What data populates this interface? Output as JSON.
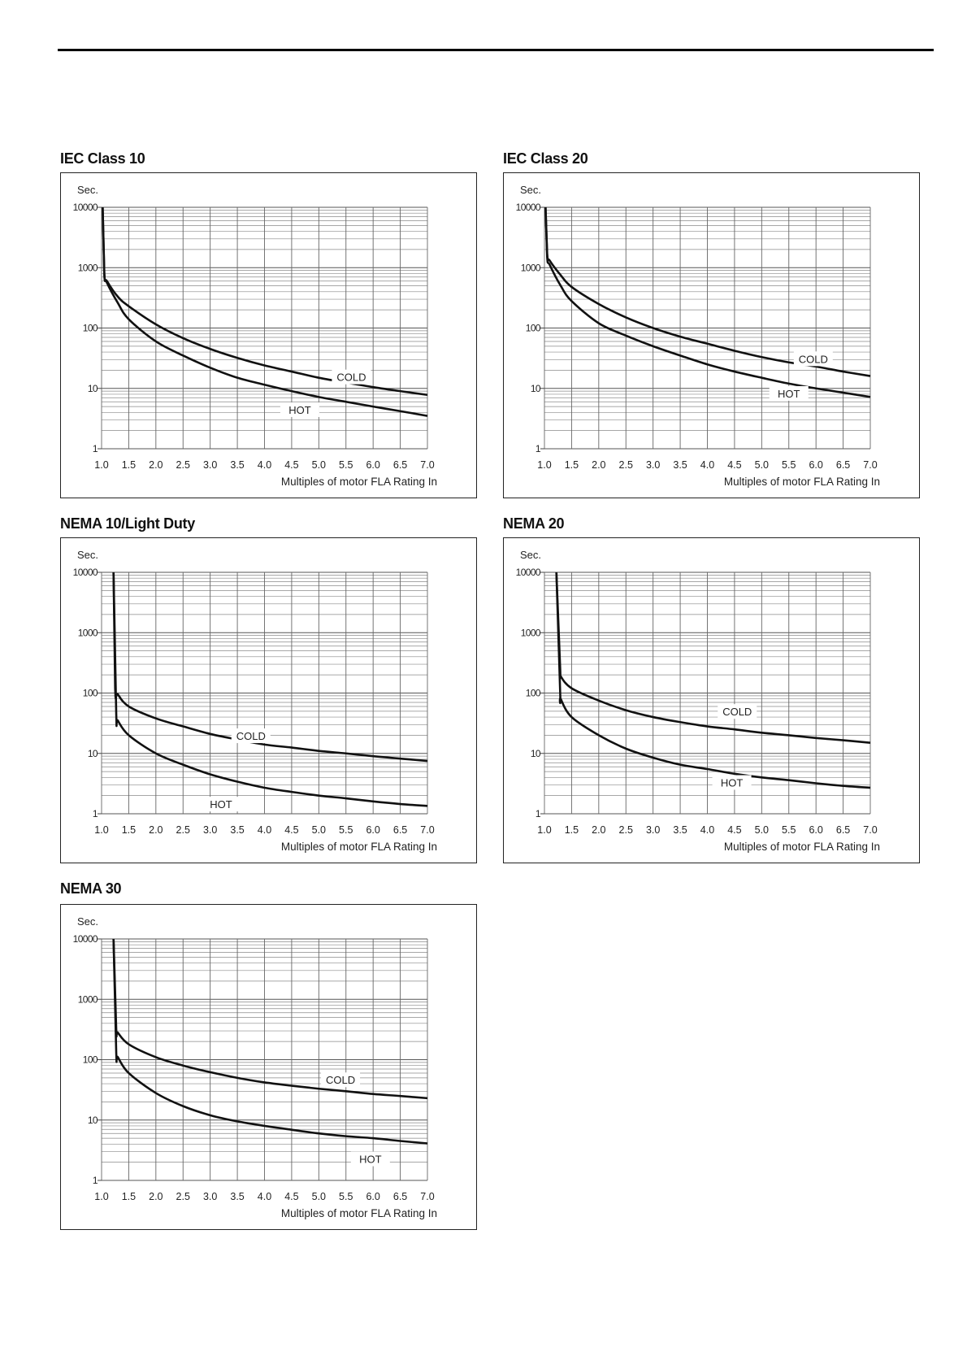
{
  "chart_data": [
    {
      "id": "iec10",
      "type": "line",
      "title": "IEC Class 10",
      "ylabel": "Sec.",
      "xlabel": "Multiples of motor FLA Rating In",
      "yscale": "log",
      "ylim": [
        1,
        10000
      ],
      "xlim": [
        1.0,
        7.0
      ],
      "grid": true,
      "yticks": [
        "1",
        "10",
        "100",
        "1000",
        "10000"
      ],
      "xticks": [
        "1.0",
        "1.5",
        "2.0",
        "2.5",
        "3.0",
        "3.5",
        "4.0",
        "4.5",
        "5.0",
        "5.5",
        "6.0",
        "6.5",
        "7.0"
      ],
      "series": [
        {
          "name": "COLD",
          "label_at": [
            5.6,
            15
          ],
          "x": [
            1.02,
            1.05,
            1.1,
            1.3,
            1.5,
            2.0,
            2.5,
            3.0,
            3.5,
            4.0,
            4.5,
            5.0,
            5.5,
            6.0,
            6.5,
            7.0
          ],
          "y": [
            10000,
            800,
            600,
            330,
            230,
            115,
            68,
            45,
            32,
            24,
            19,
            15,
            12.5,
            10.5,
            9,
            7.8
          ]
        },
        {
          "name": "HOT",
          "label_at": [
            4.65,
            4.3
          ],
          "x": [
            1.02,
            1.05,
            1.1,
            1.3,
            1.5,
            2.0,
            2.5,
            3.0,
            3.5,
            4.0,
            4.5,
            5.0,
            5.5,
            6.0,
            6.5,
            7.0
          ],
          "y": [
            10000,
            800,
            560,
            260,
            140,
            60,
            35,
            22,
            15,
            11.5,
            9,
            7.2,
            6,
            5,
            4.2,
            3.5
          ]
        }
      ]
    },
    {
      "id": "iec20",
      "type": "line",
      "title": "IEC Class 20",
      "ylabel": "Sec.",
      "xlabel": "Multiples of motor FLA Rating In",
      "yscale": "log",
      "ylim": [
        1,
        10000
      ],
      "xlim": [
        1.0,
        7.0
      ],
      "grid": true,
      "yticks": [
        "1",
        "10",
        "100",
        "1000",
        "10000"
      ],
      "xticks": [
        "1.0",
        "1.5",
        "2.0",
        "2.5",
        "3.0",
        "3.5",
        "4.0",
        "4.5",
        "5.0",
        "5.5",
        "6.0",
        "6.5",
        "7.0"
      ],
      "series": [
        {
          "name": "COLD",
          "label_at": [
            5.95,
            30
          ],
          "x": [
            1.02,
            1.05,
            1.1,
            1.3,
            1.5,
            2.0,
            2.5,
            3.0,
            3.5,
            4.0,
            4.5,
            5.0,
            5.5,
            6.0,
            6.5,
            7.0
          ],
          "y": [
            10000,
            1700,
            1300,
            750,
            480,
            250,
            150,
            100,
            72,
            55,
            42,
            33,
            27,
            23,
            19,
            16
          ]
        },
        {
          "name": "HOT",
          "label_at": [
            5.5,
            8
          ],
          "x": [
            1.02,
            1.05,
            1.1,
            1.3,
            1.5,
            2.0,
            2.5,
            3.0,
            3.5,
            4.0,
            4.5,
            5.0,
            5.5,
            6.0,
            6.5,
            7.0
          ],
          "y": [
            10000,
            1500,
            1100,
            500,
            280,
            120,
            75,
            50,
            35,
            25,
            19,
            15,
            12,
            10,
            8.5,
            7.2
          ]
        }
      ]
    },
    {
      "id": "nema10",
      "type": "line",
      "title": "NEMA 10/Light Duty",
      "ylabel": "Sec.",
      "xlabel": "Multiples of motor FLA Rating In",
      "yscale": "log",
      "ylim": [
        1,
        10000
      ],
      "xlim": [
        1.0,
        7.0
      ],
      "grid": true,
      "yticks": [
        "1",
        "10",
        "100",
        "1000",
        "10000"
      ],
      "xticks": [
        "1.0",
        "1.5",
        "2.0",
        "2.5",
        "3.0",
        "3.5",
        "4.0",
        "4.5",
        "5.0",
        "5.5",
        "6.0",
        "6.5",
        "7.0"
      ],
      "series": [
        {
          "name": "COLD",
          "label_at": [
            3.75,
            19
          ],
          "x": [
            1.22,
            1.25,
            1.3,
            1.5,
            2.0,
            2.5,
            3.0,
            3.5,
            4.0,
            4.5,
            5.0,
            5.5,
            6.0,
            6.5,
            7.0
          ],
          "y": [
            10000,
            120,
            95,
            60,
            38,
            28,
            21,
            17,
            14,
            12.5,
            11,
            10,
            9,
            8.2,
            7.5
          ]
        },
        {
          "name": "HOT",
          "label_at": [
            3.2,
            1.4
          ],
          "x": [
            1.22,
            1.27,
            1.3,
            1.5,
            2.0,
            2.5,
            3.0,
            3.5,
            4.0,
            4.5,
            5.0,
            5.5,
            6.0,
            6.5,
            7.0
          ],
          "y": [
            10000,
            45,
            35,
            20,
            10,
            6.5,
            4.5,
            3.4,
            2.7,
            2.3,
            2.0,
            1.8,
            1.6,
            1.45,
            1.35
          ]
        }
      ]
    },
    {
      "id": "nema20",
      "type": "line",
      "title": "NEMA 20",
      "ylabel": "Sec.",
      "xlabel": "Multiples of motor FLA Rating In",
      "yscale": "log",
      "ylim": [
        1,
        10000
      ],
      "xlim": [
        1.0,
        7.0
      ],
      "grid": true,
      "yticks": [
        "1",
        "10",
        "100",
        "1000",
        "10000"
      ],
      "xticks": [
        "1.0",
        "1.5",
        "2.0",
        "2.5",
        "3.0",
        "3.5",
        "4.0",
        "4.5",
        "5.0",
        "5.5",
        "6.0",
        "6.5",
        "7.0"
      ],
      "series": [
        {
          "name": "COLD",
          "label_at": [
            4.55,
            48
          ],
          "x": [
            1.22,
            1.29,
            1.3,
            1.5,
            2.0,
            2.5,
            3.0,
            3.5,
            4.0,
            4.5,
            5.0,
            5.5,
            6.0,
            6.5,
            7.0
          ],
          "y": [
            10000,
            250,
            190,
            120,
            75,
            52,
            40,
            33,
            28,
            25,
            22,
            20,
            18,
            16.5,
            15
          ]
        },
        {
          "name": "HOT",
          "label_at": [
            4.45,
            3.2
          ],
          "x": [
            1.22,
            1.29,
            1.3,
            1.5,
            2.0,
            2.5,
            3.0,
            3.5,
            4.0,
            4.5,
            5.0,
            5.5,
            6.0,
            6.5,
            7.0
          ],
          "y": [
            10000,
            100,
            80,
            40,
            20,
            12,
            8.5,
            6.5,
            5.5,
            4.6,
            4,
            3.6,
            3.2,
            2.9,
            2.7
          ]
        }
      ]
    },
    {
      "id": "nema30",
      "type": "line",
      "title": "NEMA 30",
      "ylabel": "Sec.",
      "xlabel": "Multiples of motor FLA Rating In",
      "yscale": "log",
      "ylim": [
        1,
        10000
      ],
      "xlim": [
        1.0,
        7.0
      ],
      "grid": true,
      "yticks": [
        "1",
        "10",
        "100",
        "1000",
        "10000"
      ],
      "xticks": [
        "1.0",
        "1.5",
        "2.0",
        "2.5",
        "3.0",
        "3.5",
        "4.0",
        "4.5",
        "5.0",
        "5.5",
        "6.0",
        "6.5",
        "7.0"
      ],
      "series": [
        {
          "name": "COLD",
          "label_at": [
            5.4,
            45
          ],
          "x": [
            1.22,
            1.27,
            1.3,
            1.5,
            2.0,
            2.5,
            3.0,
            3.5,
            4.0,
            4.5,
            5.0,
            5.5,
            6.0,
            6.5,
            7.0
          ],
          "y": [
            10000,
            320,
            280,
            180,
            110,
            80,
            62,
            50,
            42,
            37,
            33,
            30,
            27,
            25,
            23
          ]
        },
        {
          "name": "HOT",
          "label_at": [
            5.95,
            2.2
          ],
          "x": [
            1.22,
            1.27,
            1.3,
            1.5,
            2.0,
            2.5,
            3.0,
            3.5,
            4.0,
            4.5,
            5.0,
            5.5,
            6.0,
            6.5,
            7.0
          ],
          "y": [
            10000,
            130,
            110,
            60,
            28,
            17,
            12,
            9.5,
            8,
            6.9,
            6,
            5.4,
            5,
            4.5,
            4.1
          ]
        }
      ]
    }
  ]
}
